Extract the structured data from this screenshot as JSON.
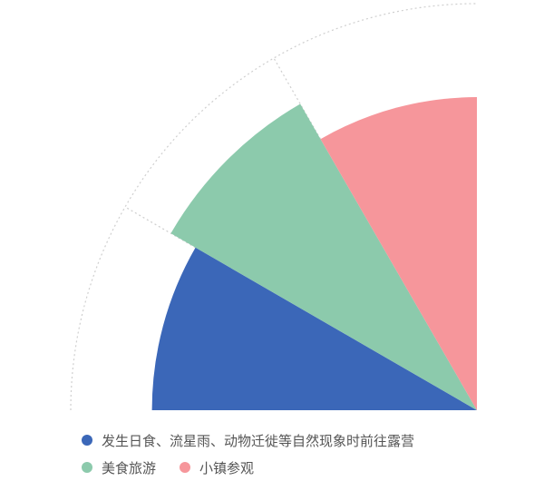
{
  "chart_data": {
    "type": "pie",
    "title": "",
    "variant": "rose-quarter",
    "outer_ring": "dashed-gray",
    "series": [
      {
        "name": "发生日食、流星雨、动物迁徙等自然现象时前往露营",
        "value": 30,
        "relative_radius": 0.8,
        "color": "#3b67b8"
      },
      {
        "name": "美食旅游",
        "value": 30,
        "relative_radius": 0.87,
        "color": "#8ccaac"
      },
      {
        "name": "小镇参观",
        "value": 30,
        "relative_radius": 0.77,
        "color": "#f6969b"
      }
    ],
    "legend": {
      "position": "bottom-left",
      "rows": [
        [
          0
        ],
        [
          1,
          2
        ]
      ]
    }
  }
}
